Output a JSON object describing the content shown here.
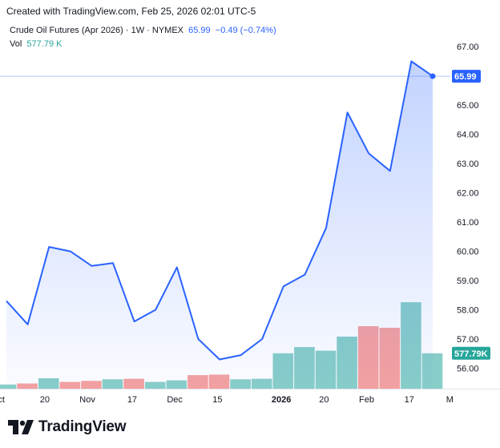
{
  "credit": "Created with TradingView.com, Feb 25, 2026 02:01 UTC-5",
  "legend": {
    "symbol": "Crude Oil Futures (Apr 2026) · 1W · NYMEX",
    "last": "65.99",
    "change": "−0.49 (−0.74%)",
    "vol_label": "Vol",
    "vol_value": "577.79 K"
  },
  "brand": {
    "name": "TradingView"
  },
  "colors": {
    "line": "#2962ff",
    "vol_up": "#26a69a",
    "vol_down": "#ef5350"
  },
  "chart_data": {
    "type": "line",
    "title": "Crude Oil Futures (Apr 2026) · 1W · NYMEX",
    "y_ticks": [
      56.0,
      57.0,
      58.0,
      59.0,
      60.0,
      61.0,
      62.0,
      63.0,
      64.0,
      65.0,
      66.0,
      67.0
    ],
    "ylim": [
      55.3,
      67.5
    ],
    "x_ticks": [
      "Oct",
      "20",
      "Nov",
      "17",
      "Dec",
      "15",
      "2026",
      "20",
      "Feb",
      "17",
      "M"
    ],
    "x_tick_index": [
      -0.4,
      1.8,
      3.8,
      5.9,
      7.9,
      9.9,
      12.9,
      14.9,
      16.9,
      18.9,
      20.8
    ],
    "last_price_label": "65.99",
    "last_volume_label": "577.79K",
    "series": [
      {
        "kind": "price",
        "values": [
          58.3,
          57.5,
          60.15,
          60.0,
          59.5,
          59.6,
          57.6,
          58.0,
          59.45,
          57.0,
          56.3,
          56.45,
          57.0,
          58.8,
          59.2,
          60.8,
          64.75,
          63.35,
          62.75,
          66.5,
          65.99
        ]
      },
      {
        "kind": "volume",
        "values": [
          0.08,
          0.1,
          0.2,
          0.13,
          0.15,
          0.18,
          0.19,
          0.13,
          0.16,
          0.26,
          0.27,
          0.18,
          0.19,
          0.68,
          0.8,
          0.73,
          1.0,
          1.2,
          1.17,
          1.66,
          0.68
        ],
        "up": [
          true,
          false,
          true,
          false,
          false,
          true,
          false,
          true,
          true,
          false,
          false,
          true,
          true,
          true,
          true,
          true,
          true,
          false,
          false,
          true,
          true
        ]
      }
    ]
  }
}
